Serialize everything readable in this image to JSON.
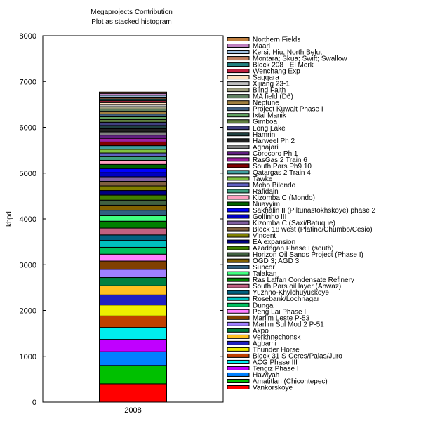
{
  "chart_data": {
    "type": "bar",
    "stacked": true,
    "title": "Megaprojects Contribution",
    "subtitle": "Plot as stacked histogram",
    "ylabel": "kbpd",
    "xlabel": "",
    "categories": [
      "2008"
    ],
    "ylim": [
      0,
      8000
    ],
    "yticks": [
      0,
      1000,
      2000,
      3000,
      4000,
      5000,
      6000,
      7000,
      8000
    ],
    "legend_position": "right",
    "grid": false,
    "series": [
      {
        "name": "Vankorskoye",
        "color": "#ff0000",
        "values": [
          400
        ]
      },
      {
        "name": "Amatitlan (Chicontepec)",
        "color": "#00c000",
        "values": [
          400
        ]
      },
      {
        "name": "Hawiyah",
        "color": "#0080ff",
        "values": [
          300
        ]
      },
      {
        "name": "Tengiz Phase I",
        "color": "#c000ff",
        "values": [
          270
        ]
      },
      {
        "name": "ACG Phase III",
        "color": "#00eeee",
        "values": [
          260
        ]
      },
      {
        "name": "Block 31 S-Ceres/Palas/Juro",
        "color": "#c04000",
        "values": [
          250
        ]
      },
      {
        "name": "Thunder Horse",
        "color": "#eeee00",
        "values": [
          240
        ]
      },
      {
        "name": "Agbami",
        "color": "#2020c0",
        "values": [
          220
        ]
      },
      {
        "name": "Verkhnechonsk",
        "color": "#ffc020",
        "values": [
          200
        ]
      },
      {
        "name": "Akpo",
        "color": "#008040",
        "values": [
          180
        ]
      },
      {
        "name": "Marlim Sul Mod 2 P-51",
        "color": "#a080ff",
        "values": [
          180
        ]
      },
      {
        "name": "Marlim Leste P-53",
        "color": "#804000",
        "values": [
          180
        ]
      },
      {
        "name": "Peng Lai Phase II",
        "color": "#ff80ff",
        "values": [
          150
        ]
      },
      {
        "name": "Dunga",
        "color": "#00c060",
        "values": [
          150
        ]
      },
      {
        "name": "Rosebank/Lochnagar",
        "color": "#00c0c0",
        "values": [
          150
        ]
      },
      {
        "name": "Yuzhno-Khylchuyuskoye",
        "color": "#006080",
        "values": [
          120
        ]
      },
      {
        "name": "South Pars oil layer (Ahwaz)",
        "color": "#c06080",
        "values": [
          150
        ]
      },
      {
        "name": "Ras Laffan Condensate Refinery",
        "color": "#008000",
        "values": [
          150
        ]
      },
      {
        "name": "Talakan",
        "color": "#40ff80",
        "values": [
          120
        ]
      },
      {
        "name": "Suncor",
        "color": "#306080",
        "values": [
          120
        ]
      },
      {
        "name": "OGD 3; AGD 3",
        "color": "#806000",
        "values": [
          110
        ]
      },
      {
        "name": "Horizon Oil Sands Project (Phase I)",
        "color": "#406040",
        "values": [
          110
        ]
      },
      {
        "name": "Azadegan Phase I (south)",
        "color": "#408000",
        "values": [
          110
        ]
      },
      {
        "name": "EA expansion",
        "color": "#000080",
        "values": [
          100
        ]
      },
      {
        "name": "Vincent",
        "color": "#808000",
        "values": [
          100
        ]
      },
      {
        "name": "Block 18 west (Platino/Chumbo/Cesio)",
        "color": "#806040",
        "values": [
          100
        ]
      },
      {
        "name": "Kizomba C (Saxi/Batuque)",
        "color": "#8060a0",
        "values": [
          100
        ]
      },
      {
        "name": "Golfinho III",
        "color": "#0000c0",
        "values": [
          90
        ]
      },
      {
        "name": "Sakhalin II (Piltunastokhskoye) phase 2",
        "color": "#0000ff",
        "values": [
          90
        ]
      },
      {
        "name": "Nuayyim",
        "color": "#006000",
        "values": [
          90
        ]
      },
      {
        "name": "Kizomba C (Mondo)",
        "color": "#ffa0c0",
        "values": [
          90
        ]
      },
      {
        "name": "Rafidain",
        "color": "#40a080",
        "values": [
          80
        ]
      },
      {
        "name": "Moho Bilondo",
        "color": "#6060c0",
        "values": [
          80
        ]
      },
      {
        "name": "Tawke",
        "color": "#80c040",
        "values": [
          80
        ]
      },
      {
        "name": "Qatargas 2 Train 4",
        "color": "#40a0a0",
        "values": [
          80
        ]
      },
      {
        "name": "South Pars Ph9 10",
        "color": "#800000",
        "values": [
          80
        ]
      },
      {
        "name": "RasGas 2 Train 6",
        "color": "#a020a0",
        "values": [
          80
        ]
      },
      {
        "name": "Corocoro Ph 1",
        "color": "#602080",
        "values": [
          70
        ]
      },
      {
        "name": "Aghajari",
        "color": "#808080",
        "values": [
          70
        ]
      },
      {
        "name": "Harweel Ph 2",
        "color": "#202020",
        "values": [
          70
        ]
      },
      {
        "name": "Hamrin",
        "color": "#204040",
        "values": [
          70
        ]
      },
      {
        "name": "Long Lake",
        "color": "#404080",
        "values": [
          70
        ]
      },
      {
        "name": "Gimboa",
        "color": "#608040",
        "values": [
          60
        ]
      },
      {
        "name": "Ixtal Manik",
        "color": "#60a060",
        "values": [
          60
        ]
      },
      {
        "name": "Project Kuwait Phase I",
        "color": "#406080",
        "values": [
          60
        ]
      },
      {
        "name": "Neptune",
        "color": "#a08040",
        "values": [
          60
        ]
      },
      {
        "name": "MA field (D6)",
        "color": "#608060",
        "values": [
          50
        ]
      },
      {
        "name": "Blind Faith",
        "color": "#a0a080",
        "values": [
          50
        ]
      },
      {
        "name": "Xijiang 23-1",
        "color": "#c0c0c0",
        "values": [
          50
        ]
      },
      {
        "name": "Saqqara",
        "color": "#ffe0c0",
        "values": [
          40
        ]
      },
      {
        "name": "Wenchang Exp",
        "color": "#c02040",
        "values": [
          40
        ]
      },
      {
        "name": "Block 208 - El Merk",
        "color": "#208080",
        "values": [
          40
        ]
      },
      {
        "name": "Montara; Skua; Swift; Swallow",
        "color": "#c08060",
        "values": [
          40
        ]
      },
      {
        "name": "Kersi; Hiu; North Belut",
        "color": "#a0c0e0",
        "values": [
          40
        ]
      },
      {
        "name": "Maari",
        "color": "#c080c0",
        "values": [
          40
        ]
      },
      {
        "name": "Northern Fields",
        "color": "#c08040",
        "values": [
          30
        ]
      }
    ]
  }
}
